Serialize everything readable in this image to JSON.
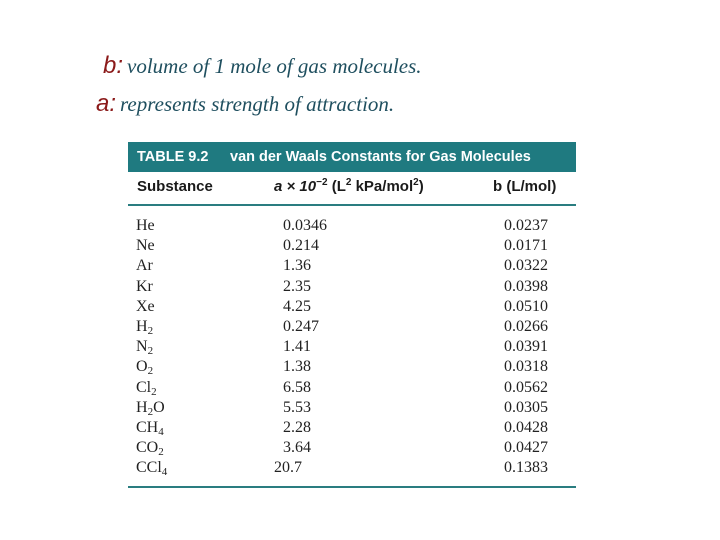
{
  "definitions": {
    "b": {
      "symbol": "b:",
      "text": "volume of 1 mole of gas molecules."
    },
    "a": {
      "symbol": "a:",
      "text": "represents strength of attraction."
    }
  },
  "table": {
    "number": "TABLE 9.2",
    "title": "van der Waals Constants for Gas Molecules",
    "headers": {
      "substance": "Substance",
      "a_prefix": "a × 10",
      "a_exp": "−2",
      "a_unit_1": " (L",
      "a_unit_2": " kPa/mol",
      "a_unit_3": ")",
      "b": "b (L/mol)"
    },
    "rows": [
      {
        "base": "He",
        "sub": "",
        "tail": "",
        "a": "0.0346",
        "b": "0.0237"
      },
      {
        "base": "Ne",
        "sub": "",
        "tail": "",
        "a": "0.214",
        "b": "0.0171"
      },
      {
        "base": "Ar",
        "sub": "",
        "tail": "",
        "a": "1.36",
        "b": "0.0322"
      },
      {
        "base": "Kr",
        "sub": "",
        "tail": "",
        "a": "2.35",
        "b": "0.0398"
      },
      {
        "base": "Xe",
        "sub": "",
        "tail": "",
        "a": "4.25",
        "b": "0.0510"
      },
      {
        "base": "H",
        "sub": "2",
        "tail": "",
        "a": "0.247",
        "b": "0.0266"
      },
      {
        "base": "N",
        "sub": "2",
        "tail": "",
        "a": "1.41",
        "b": "0.0391"
      },
      {
        "base": "O",
        "sub": "2",
        "tail": "",
        "a": "1.38",
        "b": "0.0318"
      },
      {
        "base": "Cl",
        "sub": "2",
        "tail": "",
        "a": "6.58",
        "b": "0.0562"
      },
      {
        "base": "H",
        "sub": "2",
        "tail": "O",
        "a": "5.53",
        "b": "0.0305"
      },
      {
        "base": "CH",
        "sub": "4",
        "tail": "",
        "a": "2.28",
        "b": "0.0428"
      },
      {
        "base": "CO",
        "sub": "2",
        "tail": "",
        "a": "3.64",
        "b": "0.0427"
      },
      {
        "base": "CCl",
        "sub": "4",
        "tail": "",
        "a": "20.7",
        "b": "0.1383"
      }
    ]
  },
  "colors": {
    "header_bg": "#1f7a80",
    "rule": "#2a7d80",
    "symbol": "#8b1a1a",
    "definition_text": "#1f4f5f"
  }
}
